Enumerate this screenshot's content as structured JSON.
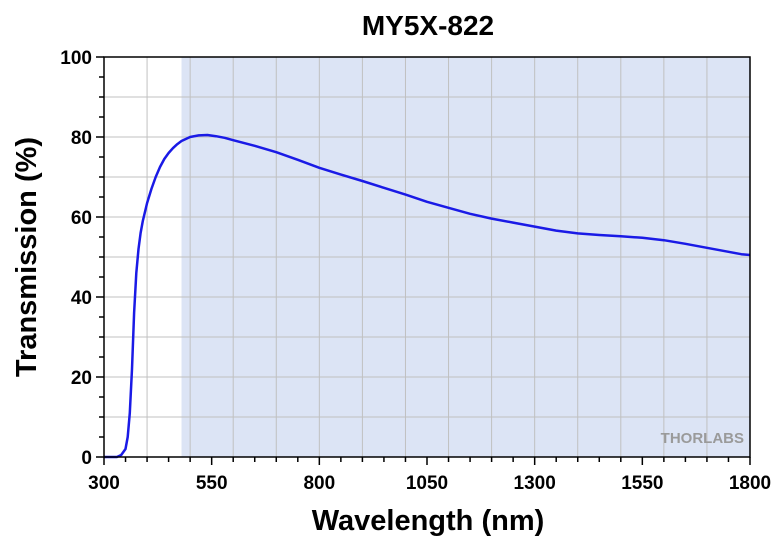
{
  "chart_data": {
    "type": "line",
    "title": "MY5X-822",
    "xlabel": "Wavelength (nm)",
    "ylabel": "Transmission (%)",
    "xlim": [
      300,
      1800
    ],
    "ylim": [
      0,
      100
    ],
    "xticks": [
      300,
      550,
      800,
      1050,
      1300,
      1550,
      1800
    ],
    "yticks": [
      0,
      20,
      40,
      60,
      80,
      100
    ],
    "grid": true,
    "shaded_band": {
      "x_start": 480,
      "x_end": 1800,
      "color": "#dce4f5"
    },
    "colors": {
      "line": "#1a1ae6",
      "grid": "#c0c0c0",
      "band": "#dce4f5"
    },
    "watermark": "THORLABS",
    "series": [
      {
        "color": "#1a1ae6",
        "x": [
          300,
          330,
          340,
          350,
          355,
          360,
          365,
          370,
          375,
          380,
          385,
          390,
          400,
          410,
          420,
          430,
          440,
          450,
          460,
          470,
          480,
          500,
          520,
          540,
          560,
          580,
          600,
          650,
          700,
          750,
          800,
          850,
          900,
          950,
          1000,
          1050,
          1100,
          1150,
          1200,
          1250,
          1300,
          1350,
          1400,
          1450,
          1500,
          1550,
          1600,
          1650,
          1700,
          1750,
          1780,
          1800
        ],
        "y": [
          0,
          0,
          0.5,
          2,
          5,
          11,
          22,
          36,
          46,
          52,
          56,
          59,
          63.5,
          67,
          70,
          72.5,
          74.5,
          76,
          77.2,
          78.2,
          79,
          80,
          80.4,
          80.5,
          80.2,
          79.8,
          79.2,
          77.8,
          76.2,
          74.3,
          72.3,
          70.6,
          69,
          67.3,
          65.6,
          63.8,
          62.3,
          60.8,
          59.6,
          58.6,
          57.6,
          56.6,
          55.9,
          55.5,
          55.2,
          54.8,
          54.2,
          53.3,
          52.3,
          51.3,
          50.7,
          50.5
        ]
      }
    ]
  }
}
